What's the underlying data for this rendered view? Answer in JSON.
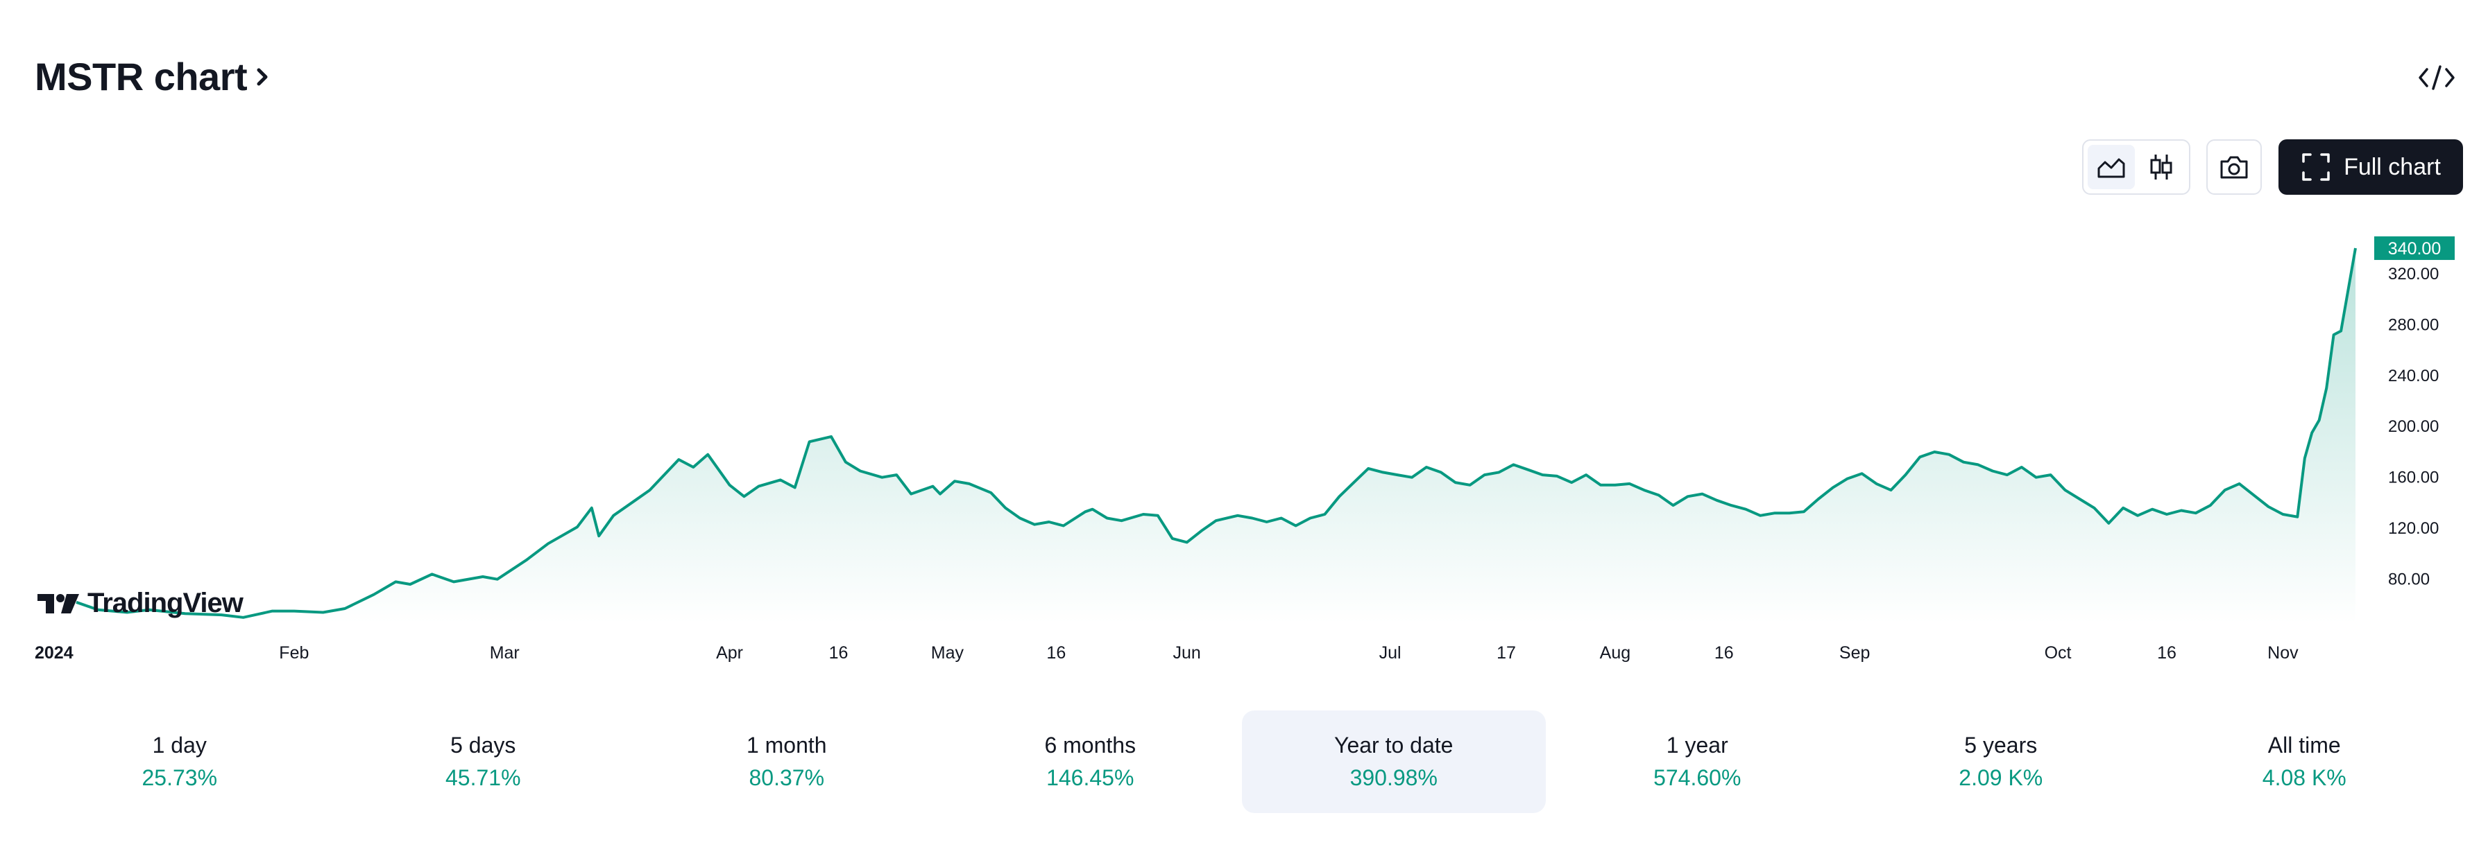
{
  "header": {
    "title": "MSTR chart",
    "title_icon": "chevron-right-icon",
    "embed_icon": "code-embed-icon"
  },
  "toolbar": {
    "chart_styles": [
      {
        "name": "area-chart-icon",
        "active": true
      },
      {
        "name": "candles-icon",
        "active": false
      }
    ],
    "screenshot_icon": "camera-icon",
    "full_chart_label": "Full chart",
    "full_chart_icon": "fullscreen-icon"
  },
  "logo": {
    "text": "TradingView"
  },
  "colors": {
    "line": "#089981",
    "badge": "#089981",
    "text": "#131722",
    "active_bg": "#f0f3fa"
  },
  "chart_data": {
    "type": "area",
    "x_range": [
      "2024-01-02",
      "2024-11-11"
    ],
    "y_axis_ticks": [
      "80.00",
      "120.00",
      "160.00",
      "200.00",
      "240.00",
      "280.00",
      "320.00"
    ],
    "y_axis_values": [
      80,
      120,
      160,
      200,
      240,
      280,
      320
    ],
    "ylim": [
      45,
      352
    ],
    "last_price": "340.00",
    "x_ticks": [
      {
        "label": "2024",
        "date": "2024-01-02",
        "bold": true
      },
      {
        "label": "Feb",
        "date": "2024-02-01"
      },
      {
        "label": "Mar",
        "date": "2024-03-01"
      },
      {
        "label": "Apr",
        "date": "2024-04-01"
      },
      {
        "label": "16",
        "date": "2024-04-16"
      },
      {
        "label": "May",
        "date": "2024-05-01"
      },
      {
        "label": "16",
        "date": "2024-05-16"
      },
      {
        "label": "Jun",
        "date": "2024-06-03"
      },
      {
        "label": "Jul",
        "date": "2024-07-01"
      },
      {
        "label": "17",
        "date": "2024-07-17"
      },
      {
        "label": "Aug",
        "date": "2024-08-01"
      },
      {
        "label": "16",
        "date": "2024-08-16"
      },
      {
        "label": "Sep",
        "date": "2024-09-03"
      },
      {
        "label": "Oct",
        "date": "2024-10-01"
      },
      {
        "label": "16",
        "date": "2024-10-16"
      },
      {
        "label": "Nov",
        "date": "2024-11-01"
      }
    ],
    "series": [
      {
        "points": [
          [
            "2024-01-02",
            62
          ],
          [
            "2024-01-05",
            56
          ],
          [
            "2024-01-09",
            54
          ],
          [
            "2024-01-12",
            56
          ],
          [
            "2024-01-17",
            53
          ],
          [
            "2024-01-22",
            52
          ],
          [
            "2024-01-25",
            50
          ],
          [
            "2024-01-29",
            55
          ],
          [
            "2024-02-01",
            55
          ],
          [
            "2024-02-05",
            54
          ],
          [
            "2024-02-08",
            57
          ],
          [
            "2024-02-12",
            68
          ],
          [
            "2024-02-15",
            78
          ],
          [
            "2024-02-17",
            76
          ],
          [
            "2024-02-20",
            84
          ],
          [
            "2024-02-23",
            78
          ],
          [
            "2024-02-27",
            82
          ],
          [
            "2024-02-29",
            80
          ],
          [
            "2024-03-04",
            95
          ],
          [
            "2024-03-07",
            108
          ],
          [
            "2024-03-11",
            121
          ],
          [
            "2024-03-13",
            136
          ],
          [
            "2024-03-14",
            114
          ],
          [
            "2024-03-16",
            130
          ],
          [
            "2024-03-19",
            142
          ],
          [
            "2024-03-21",
            150
          ],
          [
            "2024-03-25",
            174
          ],
          [
            "2024-03-27",
            168
          ],
          [
            "2024-03-29",
            178
          ],
          [
            "2024-04-01",
            154
          ],
          [
            "2024-04-03",
            145
          ],
          [
            "2024-04-05",
            153
          ],
          [
            "2024-04-08",
            158
          ],
          [
            "2024-04-10",
            152
          ],
          [
            "2024-04-12",
            188
          ],
          [
            "2024-04-15",
            192
          ],
          [
            "2024-04-17",
            172
          ],
          [
            "2024-04-19",
            165
          ],
          [
            "2024-04-22",
            160
          ],
          [
            "2024-04-24",
            162
          ],
          [
            "2024-04-26",
            147
          ],
          [
            "2024-04-29",
            153
          ],
          [
            "2024-04-30",
            147
          ],
          [
            "2024-05-02",
            157
          ],
          [
            "2024-05-04",
            155
          ],
          [
            "2024-05-07",
            148
          ],
          [
            "2024-05-09",
            136
          ],
          [
            "2024-05-11",
            128
          ],
          [
            "2024-05-13",
            123
          ],
          [
            "2024-05-15",
            125
          ],
          [
            "2024-05-17",
            122
          ],
          [
            "2024-05-20",
            133
          ],
          [
            "2024-05-21",
            135
          ],
          [
            "2024-05-23",
            128
          ],
          [
            "2024-05-25",
            126
          ],
          [
            "2024-05-28",
            131
          ],
          [
            "2024-05-30",
            130
          ],
          [
            "2024-06-01",
            112
          ],
          [
            "2024-06-03",
            109
          ],
          [
            "2024-06-05",
            118
          ],
          [
            "2024-06-07",
            126
          ],
          [
            "2024-06-10",
            130
          ],
          [
            "2024-06-12",
            128
          ],
          [
            "2024-06-14",
            125
          ],
          [
            "2024-06-16",
            128
          ],
          [
            "2024-06-18",
            122
          ],
          [
            "2024-06-20",
            128
          ],
          [
            "2024-06-22",
            131
          ],
          [
            "2024-06-24",
            145
          ],
          [
            "2024-06-26",
            156
          ],
          [
            "2024-06-28",
            167
          ],
          [
            "2024-06-30",
            164
          ],
          [
            "2024-07-02",
            162
          ],
          [
            "2024-07-04",
            160
          ],
          [
            "2024-07-06",
            168
          ],
          [
            "2024-07-08",
            164
          ],
          [
            "2024-07-10",
            156
          ],
          [
            "2024-07-12",
            154
          ],
          [
            "2024-07-14",
            162
          ],
          [
            "2024-07-16",
            164
          ],
          [
            "2024-07-18",
            170
          ],
          [
            "2024-07-20",
            166
          ],
          [
            "2024-07-22",
            162
          ],
          [
            "2024-07-24",
            161
          ],
          [
            "2024-07-26",
            156
          ],
          [
            "2024-07-28",
            162
          ],
          [
            "2024-07-30",
            154
          ],
          [
            "2024-08-01",
            154
          ],
          [
            "2024-08-03",
            155
          ],
          [
            "2024-08-05",
            150
          ],
          [
            "2024-08-07",
            146
          ],
          [
            "2024-08-09",
            138
          ],
          [
            "2024-08-11",
            145
          ],
          [
            "2024-08-13",
            147
          ],
          [
            "2024-08-15",
            142
          ],
          [
            "2024-08-17",
            138
          ],
          [
            "2024-08-19",
            135
          ],
          [
            "2024-08-21",
            130
          ],
          [
            "2024-08-23",
            132
          ],
          [
            "2024-08-25",
            132
          ],
          [
            "2024-08-27",
            133
          ],
          [
            "2024-08-29",
            143
          ],
          [
            "2024-08-31",
            152
          ],
          [
            "2024-09-02",
            159
          ],
          [
            "2024-09-04",
            163
          ],
          [
            "2024-09-06",
            155
          ],
          [
            "2024-09-08",
            150
          ],
          [
            "2024-09-10",
            162
          ],
          [
            "2024-09-12",
            176
          ],
          [
            "2024-09-14",
            180
          ],
          [
            "2024-09-16",
            178
          ],
          [
            "2024-09-18",
            172
          ],
          [
            "2024-09-20",
            170
          ],
          [
            "2024-09-22",
            165
          ],
          [
            "2024-09-24",
            162
          ],
          [
            "2024-09-26",
            168
          ],
          [
            "2024-09-28",
            160
          ],
          [
            "2024-09-30",
            162
          ],
          [
            "2024-10-02",
            150
          ],
          [
            "2024-10-04",
            143
          ],
          [
            "2024-10-06",
            136
          ],
          [
            "2024-10-08",
            124
          ],
          [
            "2024-10-10",
            136
          ],
          [
            "2024-10-12",
            130
          ],
          [
            "2024-10-14",
            135
          ],
          [
            "2024-10-16",
            131
          ],
          [
            "2024-10-18",
            134
          ],
          [
            "2024-10-20",
            132
          ],
          [
            "2024-10-22",
            138
          ],
          [
            "2024-10-24",
            150
          ],
          [
            "2024-10-26",
            155
          ],
          [
            "2024-10-28",
            146
          ],
          [
            "2024-10-30",
            137
          ],
          [
            "2024-11-01",
            131
          ],
          [
            "2024-11-03",
            129
          ],
          [
            "2024-11-04",
            175
          ],
          [
            "2024-11-05",
            195
          ],
          [
            "2024-11-06",
            205
          ],
          [
            "2024-11-07",
            230
          ],
          [
            "2024-11-08",
            272
          ],
          [
            "2024-11-09",
            275
          ],
          [
            "2024-11-11",
            340
          ]
        ]
      }
    ]
  },
  "periods": [
    {
      "label": "1 day",
      "value": "25.73%",
      "active": false
    },
    {
      "label": "5 days",
      "value": "45.71%",
      "active": false
    },
    {
      "label": "1 month",
      "value": "80.37%",
      "active": false
    },
    {
      "label": "6 months",
      "value": "146.45%",
      "active": false
    },
    {
      "label": "Year to date",
      "value": "390.98%",
      "active": true
    },
    {
      "label": "1 year",
      "value": "574.60%",
      "active": false
    },
    {
      "label": "5 years",
      "value": "2.09 K%",
      "active": false
    },
    {
      "label": "All time",
      "value": "4.08 K%",
      "active": false
    }
  ]
}
